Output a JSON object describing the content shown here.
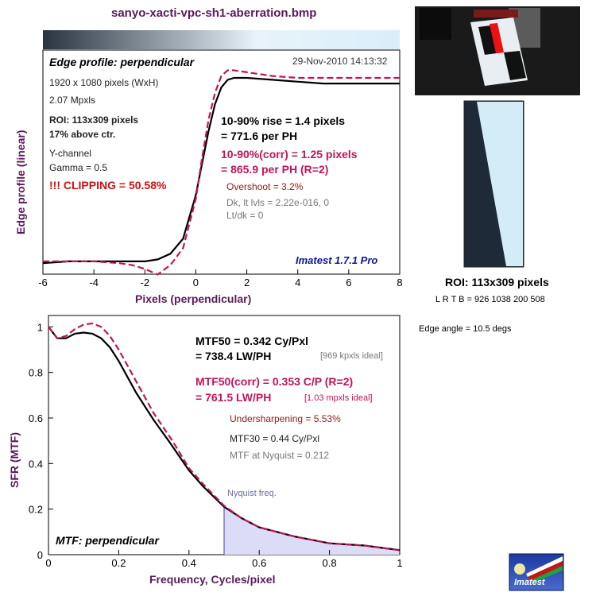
{
  "title": "sanyo-xacti-vpc-sh1-aberration.bmp",
  "edge_panel": {
    "heading": "Edge profile: perpendicular",
    "timestamp": "29-Nov-2010 14:13:32",
    "ylabel": "Edge profile (linear)",
    "xlabel": "Pixels (perpendicular)",
    "info": [
      "1920 x 1080 pixels (WxH)",
      "2.07 Mpxls"
    ],
    "roi_lines": [
      "ROI: 113x309 pixels",
      "17% above ctr."
    ],
    "ychan": [
      "Y-channel",
      "Gamma = 0.5"
    ],
    "clipping": "!!! CLIPPING =  50.58%",
    "rise1": "10-90% rise = 1.4 pixels",
    "rise2": "= 771.6 per PH",
    "corr1": "10-90%(corr) = 1.25 pixels",
    "corr2": "= 865.9 per PH  (R=2)",
    "overshoot": "Overshoot = 3.2%",
    "dk": "Dk, lt lvls = 2.22e-016, 0",
    "ltdk": "Lt/dk = 0",
    "version": "Imatest 1.7.1 Pro"
  },
  "mtf_panel": {
    "heading": "MTF: perpendicular",
    "ylabel": "SFR (MTF)",
    "xlabel": "Frequency, Cycles/pixel",
    "mtf50_1": "MTF50 = 0.342 Cy/Pxl",
    "mtf50_2": "= 738.4 LW/PH",
    "ideal1": "[969 kpxls ideal]",
    "corr1": "MTF50(corr) = 0.353 C/P  (R=2)",
    "corr2": "= 761.5 LW/PH",
    "ideal2": "[1.03 mpxls ideal]",
    "undersharp": "Undersharpening = 5.53%",
    "mtf30": "MTF30 = 0.44 Cy/Pxl",
    "nyq": "MTF at Nyquist = 0.212",
    "nyquist_label": "Nyquist freq."
  },
  "roi": {
    "label": "ROI: 113x309 pixels",
    "coords": "L R  T B = 926 1038  200 508",
    "edge_angle": "Edge angle = 10.5 degs"
  },
  "logo_text": "Imatest",
  "colors": {
    "measured": "#000000",
    "corrected": "#c0145a",
    "text_purple": "#5a1a5a",
    "shade": "#dcdcf7"
  },
  "chart_data": [
    {
      "type": "line",
      "title": "Edge profile: perpendicular",
      "xlabel": "Pixels (perpendicular)",
      "ylabel": "Edge profile (linear)",
      "xlim": [
        -6,
        8
      ],
      "xticks": [
        -6,
        -4,
        -2,
        0,
        2,
        4,
        6,
        8
      ],
      "grid": false,
      "series": [
        {
          "name": "measured",
          "x": [
            -6,
            -5,
            -4,
            -3,
            -2.5,
            -2,
            -1.5,
            -1,
            -0.5,
            0,
            0.25,
            0.5,
            0.75,
            1,
            1.25,
            1.5,
            2,
            3,
            4,
            5,
            6,
            7,
            8
          ],
          "y": [
            0.02,
            0.03,
            0.03,
            0.03,
            0.03,
            0.03,
            0.04,
            0.07,
            0.15,
            0.38,
            0.55,
            0.72,
            0.86,
            0.95,
            0.99,
            1.0,
            1.0,
            0.99,
            0.98,
            0.97,
            0.97,
            0.97,
            0.97
          ]
        },
        {
          "name": "corrected",
          "x": [
            -6,
            -5,
            -4,
            -3,
            -2.5,
            -2,
            -1.5,
            -1,
            -0.5,
            0,
            0.25,
            0.5,
            0.75,
            1,
            1.25,
            1.5,
            2,
            3,
            4,
            5,
            6,
            7,
            8
          ],
          "y": [
            0.03,
            0.03,
            0.03,
            0.02,
            0.01,
            -0.01,
            -0.04,
            0.01,
            0.1,
            0.36,
            0.58,
            0.78,
            0.92,
            1.01,
            1.04,
            1.04,
            1.03,
            1.01,
            1.0,
            1.0,
            1.0,
            1.0,
            1.0
          ]
        }
      ]
    },
    {
      "type": "line",
      "title": "MTF: perpendicular",
      "xlabel": "Frequency, Cycles/pixel",
      "ylabel": "SFR (MTF)",
      "xlim": [
        0,
        1
      ],
      "ylim": [
        0,
        1.05
      ],
      "xticks": [
        0,
        0.2,
        0.4,
        0.6,
        0.8,
        1
      ],
      "yticks": [
        0,
        0.2,
        0.4,
        0.6,
        0.8,
        1
      ],
      "nyquist": 0.5,
      "grid": false,
      "series": [
        {
          "name": "measured",
          "x": [
            0,
            0.025,
            0.05,
            0.075,
            0.1,
            0.125,
            0.15,
            0.175,
            0.2,
            0.25,
            0.3,
            0.342,
            0.4,
            0.44,
            0.5,
            0.55,
            0.6,
            0.7,
            0.8,
            0.9,
            1.0
          ],
          "y": [
            1.0,
            0.95,
            0.95,
            0.97,
            0.975,
            0.97,
            0.95,
            0.91,
            0.85,
            0.71,
            0.59,
            0.5,
            0.37,
            0.3,
            0.21,
            0.16,
            0.12,
            0.08,
            0.05,
            0.04,
            0.02
          ]
        },
        {
          "name": "corrected",
          "x": [
            0,
            0.025,
            0.05,
            0.075,
            0.1,
            0.125,
            0.15,
            0.175,
            0.2,
            0.25,
            0.3,
            0.353,
            0.4,
            0.44,
            0.5,
            0.55,
            0.6,
            0.7,
            0.8,
            0.9,
            1.0
          ],
          "y": [
            1.0,
            0.95,
            0.96,
            0.99,
            1.01,
            1.015,
            1.0,
            0.96,
            0.9,
            0.76,
            0.62,
            0.5,
            0.38,
            0.31,
            0.215,
            0.16,
            0.12,
            0.08,
            0.05,
            0.04,
            0.02
          ]
        }
      ]
    }
  ]
}
